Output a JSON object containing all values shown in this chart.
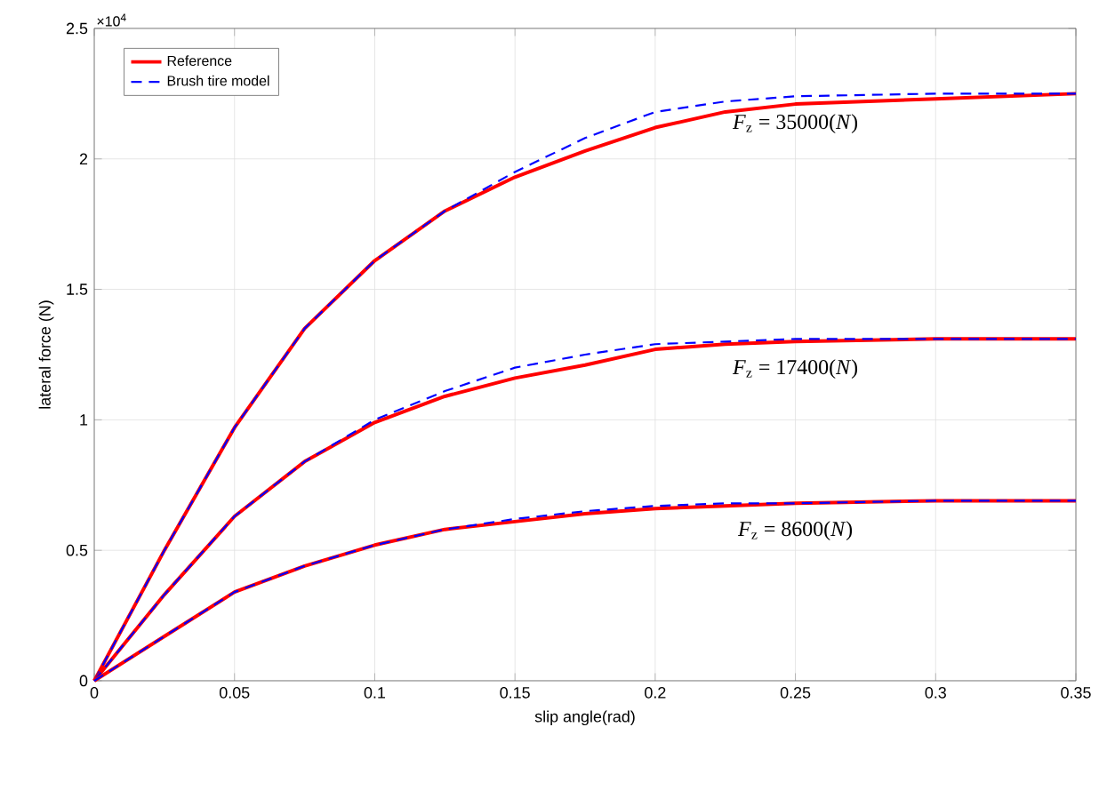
{
  "chart_data": {
    "type": "line",
    "xlabel": "slip angle(rad)",
    "ylabel": "lateral force (N)",
    "x": [
      0,
      0.025,
      0.05,
      0.075,
      0.1,
      0.125,
      0.15,
      0.175,
      0.2,
      0.225,
      0.25,
      0.3,
      0.35
    ],
    "series": [
      {
        "name": "Reference",
        "color": "#ff0000",
        "line_style": "solid",
        "values": [
          0,
          0.5,
          0.97,
          1.35,
          1.61,
          1.8,
          1.93,
          2.03,
          2.12,
          2.18,
          2.21,
          2.23,
          2.25
        ]
      },
      {
        "name": "Brush tire model",
        "color": "#0000ff",
        "line_style": "dashed",
        "values": [
          0,
          0.5,
          0.97,
          1.35,
          1.61,
          1.8,
          1.95,
          2.08,
          2.18,
          2.22,
          2.24,
          2.25,
          2.25
        ]
      },
      {
        "color": "#ff0000",
        "line_style": "solid",
        "values": [
          0,
          0.33,
          0.63,
          0.84,
          0.99,
          1.09,
          1.16,
          1.21,
          1.27,
          1.29,
          1.3,
          1.31,
          1.31
        ]
      },
      {
        "color": "#0000ff",
        "line_style": "dashed",
        "values": [
          0,
          0.33,
          0.63,
          0.84,
          1.0,
          1.11,
          1.2,
          1.25,
          1.29,
          1.3,
          1.31,
          1.31,
          1.31
        ]
      },
      {
        "color": "#ff0000",
        "line_style": "solid",
        "values": [
          0,
          0.17,
          0.34,
          0.44,
          0.52,
          0.58,
          0.61,
          0.64,
          0.66,
          0.67,
          0.68,
          0.69,
          0.69
        ]
      },
      {
        "color": "#0000ff",
        "line_style": "dashed",
        "values": [
          0,
          0.17,
          0.34,
          0.44,
          0.52,
          0.58,
          0.62,
          0.65,
          0.67,
          0.68,
          0.68,
          0.69,
          0.69
        ]
      }
    ],
    "xlim": [
      0,
      0.35
    ],
    "ylim": [
      0,
      2.5
    ],
    "xticks": [
      0,
      0.05,
      0.1,
      0.15,
      0.2,
      0.25,
      0.3,
      0.35
    ],
    "yticks": [
      0,
      0.5,
      1,
      1.5,
      2,
      2.5
    ],
    "annotations": [
      "×10$^{4}$",
      "*F*$_{z}$ = 35000(*N*)",
      "*F*$_{z}$ = 17400(*N*)",
      "*F*$_{z}$ = 8600(*N*)"
    ],
    "grid": true,
    "legend": "top left"
  }
}
